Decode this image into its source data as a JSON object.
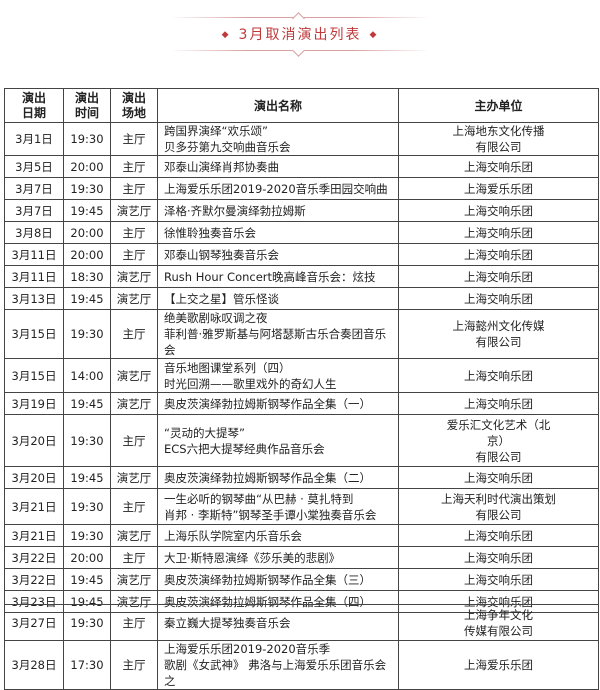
{
  "title": "3月取消演出列表",
  "title_color": "#c0393b",
  "headers": {
    "date": "演出日期",
    "time": "演出时间",
    "venue": "演出场地",
    "name": "演出名称",
    "org": "主办单位"
  },
  "rows": [
    {
      "date": "3月1日",
      "time": "19:30",
      "venue": "主厅",
      "name": [
        "跨国界演绎“欢乐颂”",
        "贝多芬第九交响曲音乐会"
      ],
      "org": [
        "上海地东文化传播",
        "有限公司"
      ]
    },
    {
      "date": "3月5日",
      "time": "20:00",
      "venue": "主厅",
      "name": [
        "邓泰山演绎肖邦协奏曲"
      ],
      "org": [
        "上海交响乐团"
      ]
    },
    {
      "date": "3月7日",
      "time": "19:30",
      "venue": "主厅",
      "name": [
        "上海爱乐乐团2019-2020音乐季田园交响曲"
      ],
      "org": [
        "上海爱乐乐团"
      ]
    },
    {
      "date": "3月7日",
      "time": "19:45",
      "venue": "演艺厅",
      "name": [
        "泽格·齐默尔曼演绎勃拉姆斯"
      ],
      "org": [
        "上海交响乐团"
      ]
    },
    {
      "date": "3月8日",
      "time": "20:00",
      "venue": "主厅",
      "name": [
        "徐惟聆独奏音乐会"
      ],
      "org": [
        "上海交响乐团"
      ]
    },
    {
      "date": "3月11日",
      "time": "20:00",
      "venue": "主厅",
      "name": [
        "邓泰山钢琴独奏音乐会"
      ],
      "org": [
        "上海交响乐团"
      ]
    },
    {
      "date": "3月11日",
      "time": "18:30",
      "venue": "演艺厅",
      "name": [
        "Rush Hour Concert晚高峰音乐会：炫技"
      ],
      "org": [
        "上海交响乐团"
      ]
    },
    {
      "date": "3月13日",
      "time": "19:45",
      "venue": "演艺厅",
      "name": [
        "【上交之星】管乐怪谈"
      ],
      "org": [
        "上海交响乐团"
      ]
    },
    {
      "date": "3月15日",
      "time": "19:30",
      "venue": "主厅",
      "name": [
        "绝美歌剧咏叹调之夜",
        "菲利普·雅罗斯基与阿塔瑟斯古乐合奏团音乐会"
      ],
      "org": [
        "上海懿州文化传媒",
        "有限公司"
      ]
    },
    {
      "date": "3月15日",
      "time": "14:00",
      "venue": "演艺厅",
      "name": [
        "音乐地图课堂系列（四）",
        "时光回溯——歌里戏外的奇幻人生"
      ],
      "org": [
        "上海交响乐团"
      ]
    },
    {
      "date": "3月19日",
      "time": "19:45",
      "venue": "演艺厅",
      "name": [
        "奥皮茨演绎勃拉姆斯钢琴作品全集（一）"
      ],
      "org": [
        "上海交响乐团"
      ]
    },
    {
      "date": "3月20日",
      "time": "19:30",
      "venue": "主厅",
      "name": [
        "“灵动的大提琴”",
        "ECS六把大提琴经典作品音乐会"
      ],
      "org": [
        "爱乐汇文化艺术（北",
        "京）",
        "有限公司"
      ]
    },
    {
      "date": "3月20日",
      "time": "19:45",
      "venue": "演艺厅",
      "name": [
        "奥皮茨演绎勃拉姆斯钢琴作品全集（二）"
      ],
      "org": [
        "上海交响乐团"
      ]
    },
    {
      "date": "3月21日",
      "time": "19:30",
      "venue": "主厅",
      "name": [
        "一生必听的钢琴曲“从巴赫 · 莫扎特到",
        "肖邦 · 李斯特”钢琴圣手谭小棠独奏音乐会"
      ],
      "org": [
        "上海天利时代演出策划",
        "有限公司"
      ]
    },
    {
      "date": "3月21日",
      "time": "19:30",
      "venue": "演艺厅",
      "name": [
        "上海乐队学院室内乐音乐会"
      ],
      "org": [
        "上海交响乐团"
      ]
    },
    {
      "date": "3月22日",
      "time": "20:00",
      "venue": "主厅",
      "name": [
        "大卫·斯特恩演绎《莎乐美的悲剧》"
      ],
      "org": [
        "上海交响乐团"
      ]
    },
    {
      "date": "3月22日",
      "time": "19:45",
      "venue": "演艺厅",
      "name": [
        "奥皮茨演绎勃拉姆斯钢琴作品全集（三）"
      ],
      "org": [
        "上海交响乐团"
      ]
    },
    {
      "date": "3月23日",
      "time": "19:45",
      "venue": "演艺厅",
      "name": [
        "奥皮茨演绎勃拉姆斯钢琴作品全集（四）"
      ],
      "org": [
        "上海交响乐团"
      ]
    }
  ],
  "rows2": [
    {
      "date": "3月27日",
      "time": "19:30",
      "venue": "主厅",
      "name": [
        "秦立巍大提琴独奏音乐会"
      ],
      "org": [
        "上海争年文化",
        "传媒有限公司"
      ]
    },
    {
      "date": "3月28日",
      "time": "17:30",
      "venue": "主厅",
      "name": [
        "上海爱乐乐团2019-2020音乐季",
        "歌剧《女武神》 弗洛与上海爱乐乐团音乐会之"
      ],
      "org": [
        "上海爱乐乐团"
      ]
    }
  ]
}
